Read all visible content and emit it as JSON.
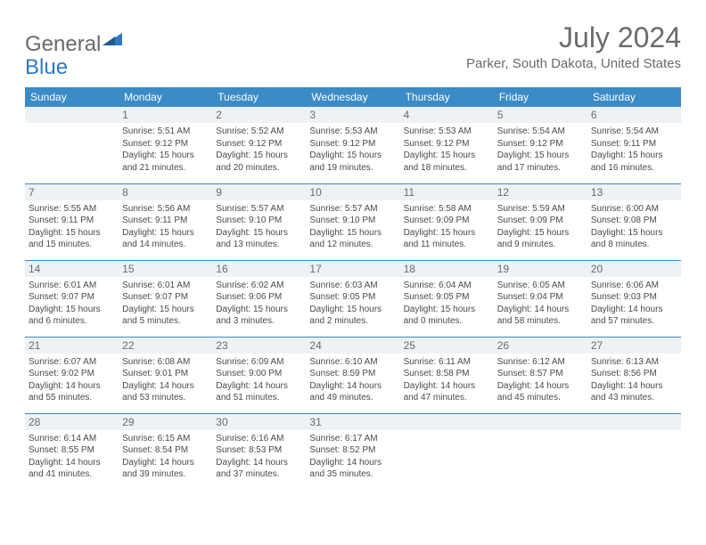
{
  "logo": {
    "part1": "General",
    "part2": "Blue"
  },
  "title": "July 2024",
  "location": "Parker, South Dakota, United States",
  "colors": {
    "header_bg": "#3b8bc7",
    "header_text": "#ffffff",
    "daynum_bg": "#eef2f5",
    "text": "#4a4a4a",
    "rule": "#3b8bc7",
    "logo_blue": "#2f7abf",
    "page_bg": "#ffffff"
  },
  "day_headers": [
    "Sunday",
    "Monday",
    "Tuesday",
    "Wednesday",
    "Thursday",
    "Friday",
    "Saturday"
  ],
  "weeks": [
    [
      null,
      {
        "n": "1",
        "sr": "Sunrise: 5:51 AM",
        "ss": "Sunset: 9:12 PM",
        "d1": "Daylight: 15 hours",
        "d2": "and 21 minutes."
      },
      {
        "n": "2",
        "sr": "Sunrise: 5:52 AM",
        "ss": "Sunset: 9:12 PM",
        "d1": "Daylight: 15 hours",
        "d2": "and 20 minutes."
      },
      {
        "n": "3",
        "sr": "Sunrise: 5:53 AM",
        "ss": "Sunset: 9:12 PM",
        "d1": "Daylight: 15 hours",
        "d2": "and 19 minutes."
      },
      {
        "n": "4",
        "sr": "Sunrise: 5:53 AM",
        "ss": "Sunset: 9:12 PM",
        "d1": "Daylight: 15 hours",
        "d2": "and 18 minutes."
      },
      {
        "n": "5",
        "sr": "Sunrise: 5:54 AM",
        "ss": "Sunset: 9:12 PM",
        "d1": "Daylight: 15 hours",
        "d2": "and 17 minutes."
      },
      {
        "n": "6",
        "sr": "Sunrise: 5:54 AM",
        "ss": "Sunset: 9:11 PM",
        "d1": "Daylight: 15 hours",
        "d2": "and 16 minutes."
      }
    ],
    [
      {
        "n": "7",
        "sr": "Sunrise: 5:55 AM",
        "ss": "Sunset: 9:11 PM",
        "d1": "Daylight: 15 hours",
        "d2": "and 15 minutes."
      },
      {
        "n": "8",
        "sr": "Sunrise: 5:56 AM",
        "ss": "Sunset: 9:11 PM",
        "d1": "Daylight: 15 hours",
        "d2": "and 14 minutes."
      },
      {
        "n": "9",
        "sr": "Sunrise: 5:57 AM",
        "ss": "Sunset: 9:10 PM",
        "d1": "Daylight: 15 hours",
        "d2": "and 13 minutes."
      },
      {
        "n": "10",
        "sr": "Sunrise: 5:57 AM",
        "ss": "Sunset: 9:10 PM",
        "d1": "Daylight: 15 hours",
        "d2": "and 12 minutes."
      },
      {
        "n": "11",
        "sr": "Sunrise: 5:58 AM",
        "ss": "Sunset: 9:09 PM",
        "d1": "Daylight: 15 hours",
        "d2": "and 11 minutes."
      },
      {
        "n": "12",
        "sr": "Sunrise: 5:59 AM",
        "ss": "Sunset: 9:09 PM",
        "d1": "Daylight: 15 hours",
        "d2": "and 9 minutes."
      },
      {
        "n": "13",
        "sr": "Sunrise: 6:00 AM",
        "ss": "Sunset: 9:08 PM",
        "d1": "Daylight: 15 hours",
        "d2": "and 8 minutes."
      }
    ],
    [
      {
        "n": "14",
        "sr": "Sunrise: 6:01 AM",
        "ss": "Sunset: 9:07 PM",
        "d1": "Daylight: 15 hours",
        "d2": "and 6 minutes."
      },
      {
        "n": "15",
        "sr": "Sunrise: 6:01 AM",
        "ss": "Sunset: 9:07 PM",
        "d1": "Daylight: 15 hours",
        "d2": "and 5 minutes."
      },
      {
        "n": "16",
        "sr": "Sunrise: 6:02 AM",
        "ss": "Sunset: 9:06 PM",
        "d1": "Daylight: 15 hours",
        "d2": "and 3 minutes."
      },
      {
        "n": "17",
        "sr": "Sunrise: 6:03 AM",
        "ss": "Sunset: 9:05 PM",
        "d1": "Daylight: 15 hours",
        "d2": "and 2 minutes."
      },
      {
        "n": "18",
        "sr": "Sunrise: 6:04 AM",
        "ss": "Sunset: 9:05 PM",
        "d1": "Daylight: 15 hours",
        "d2": "and 0 minutes."
      },
      {
        "n": "19",
        "sr": "Sunrise: 6:05 AM",
        "ss": "Sunset: 9:04 PM",
        "d1": "Daylight: 14 hours",
        "d2": "and 58 minutes."
      },
      {
        "n": "20",
        "sr": "Sunrise: 6:06 AM",
        "ss": "Sunset: 9:03 PM",
        "d1": "Daylight: 14 hours",
        "d2": "and 57 minutes."
      }
    ],
    [
      {
        "n": "21",
        "sr": "Sunrise: 6:07 AM",
        "ss": "Sunset: 9:02 PM",
        "d1": "Daylight: 14 hours",
        "d2": "and 55 minutes."
      },
      {
        "n": "22",
        "sr": "Sunrise: 6:08 AM",
        "ss": "Sunset: 9:01 PM",
        "d1": "Daylight: 14 hours",
        "d2": "and 53 minutes."
      },
      {
        "n": "23",
        "sr": "Sunrise: 6:09 AM",
        "ss": "Sunset: 9:00 PM",
        "d1": "Daylight: 14 hours",
        "d2": "and 51 minutes."
      },
      {
        "n": "24",
        "sr": "Sunrise: 6:10 AM",
        "ss": "Sunset: 8:59 PM",
        "d1": "Daylight: 14 hours",
        "d2": "and 49 minutes."
      },
      {
        "n": "25",
        "sr": "Sunrise: 6:11 AM",
        "ss": "Sunset: 8:58 PM",
        "d1": "Daylight: 14 hours",
        "d2": "and 47 minutes."
      },
      {
        "n": "26",
        "sr": "Sunrise: 6:12 AM",
        "ss": "Sunset: 8:57 PM",
        "d1": "Daylight: 14 hours",
        "d2": "and 45 minutes."
      },
      {
        "n": "27",
        "sr": "Sunrise: 6:13 AM",
        "ss": "Sunset: 8:56 PM",
        "d1": "Daylight: 14 hours",
        "d2": "and 43 minutes."
      }
    ],
    [
      {
        "n": "28",
        "sr": "Sunrise: 6:14 AM",
        "ss": "Sunset: 8:55 PM",
        "d1": "Daylight: 14 hours",
        "d2": "and 41 minutes."
      },
      {
        "n": "29",
        "sr": "Sunrise: 6:15 AM",
        "ss": "Sunset: 8:54 PM",
        "d1": "Daylight: 14 hours",
        "d2": "and 39 minutes."
      },
      {
        "n": "30",
        "sr": "Sunrise: 6:16 AM",
        "ss": "Sunset: 8:53 PM",
        "d1": "Daylight: 14 hours",
        "d2": "and 37 minutes."
      },
      {
        "n": "31",
        "sr": "Sunrise: 6:17 AM",
        "ss": "Sunset: 8:52 PM",
        "d1": "Daylight: 14 hours",
        "d2": "and 35 minutes."
      },
      null,
      null,
      null
    ]
  ]
}
